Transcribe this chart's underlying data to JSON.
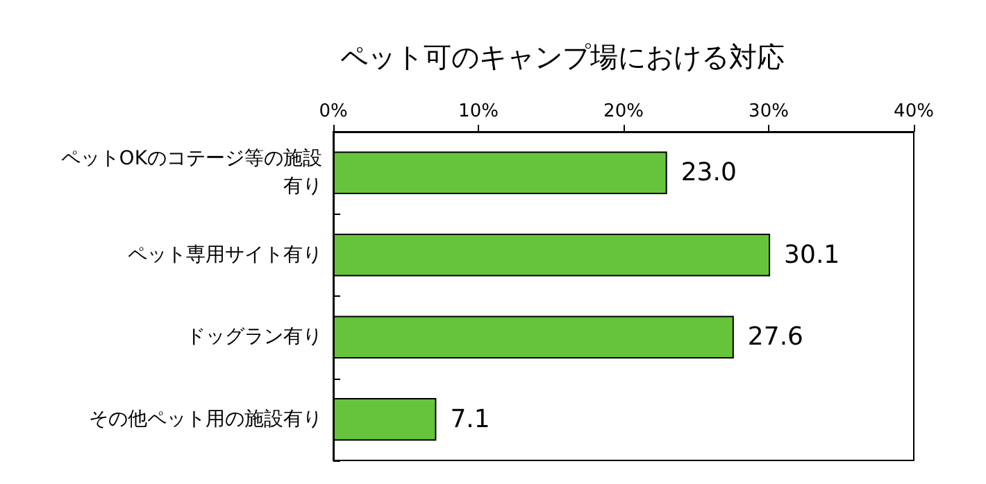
{
  "chart_data": {
    "type": "bar",
    "orientation": "horizontal",
    "title": "ペット可のキャンプ場における対応",
    "categories": [
      "ペットOKのコテージ等の施設有り",
      "ペット専用サイト有り",
      "ドッグラン有り",
      "その他ペット用の施設有り"
    ],
    "values": [
      23.0,
      30.1,
      27.6,
      7.1
    ],
    "value_labels": [
      "23.0",
      "30.1",
      "27.6",
      "7.1"
    ],
    "color": "#66c43c",
    "xlim": [
      0,
      40
    ],
    "xticks": [
      {
        "value": 0,
        "label": "0%"
      },
      {
        "value": 10,
        "label": "10%"
      },
      {
        "value": 20,
        "label": "20%"
      },
      {
        "value": 30,
        "label": "30%"
      },
      {
        "value": 40,
        "label": "40%"
      }
    ],
    "grid": false
  }
}
